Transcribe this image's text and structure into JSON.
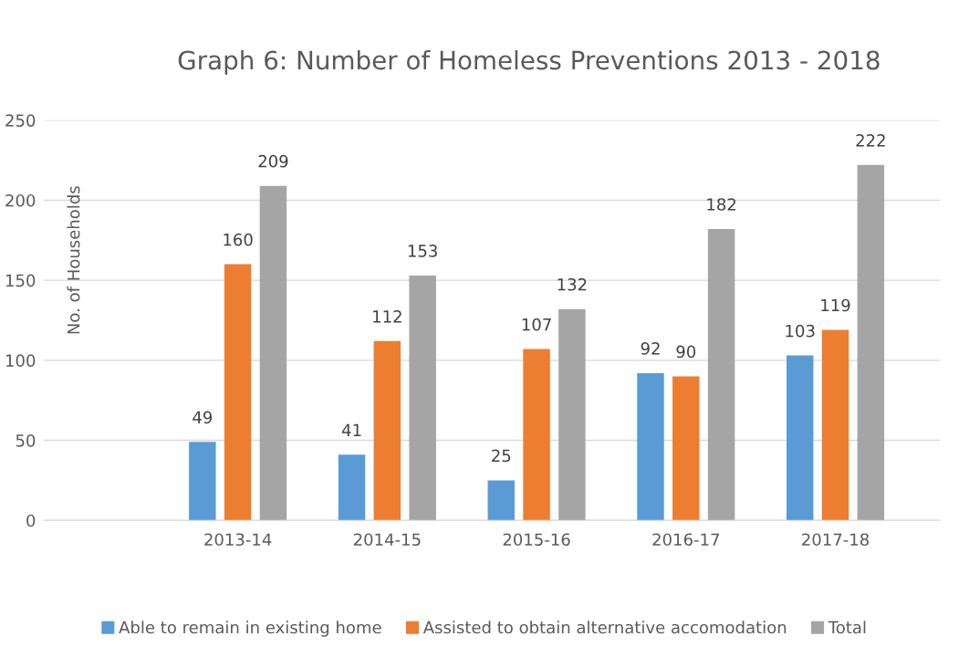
{
  "chart_data": {
    "type": "bar",
    "title": "Graph 6: Number of Homeless Preventions 2013 - 2018",
    "ylabel": "No. of Households",
    "categories": [
      null,
      "2013-14",
      "2014-15",
      "2015-16",
      "2016-17",
      "2017-18"
    ],
    "series": [
      {
        "name": "Able to remain in existing home",
        "color": "#5b9bd5",
        "values": [
          null,
          49,
          41,
          25,
          92,
          103
        ]
      },
      {
        "name": "Assisted to obtain alternative accomodation",
        "color": "#ed7d31",
        "values": [
          null,
          160,
          112,
          107,
          90,
          119
        ]
      },
      {
        "name": "Total",
        "color": "#a5a5a5",
        "values": [
          null,
          209,
          153,
          132,
          182,
          222
        ]
      }
    ],
    "ylim": [
      0,
      250
    ],
    "yticks": [
      0,
      50,
      100,
      150,
      200,
      250
    ],
    "grid": "y",
    "legend": "bottom",
    "data_labels": true
  }
}
